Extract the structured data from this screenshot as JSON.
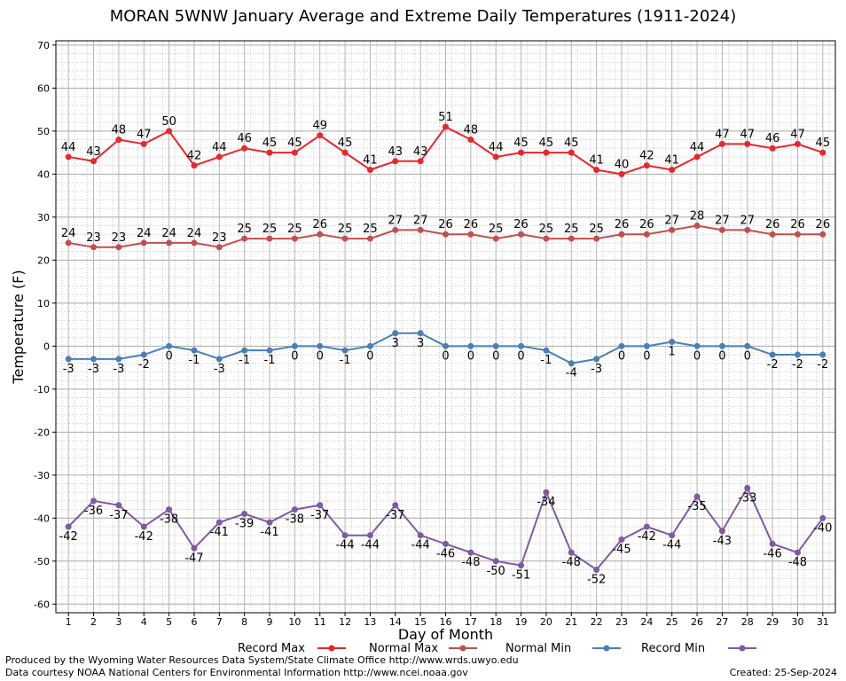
{
  "chart_data": {
    "type": "line",
    "title": "MORAN 5WNW January Average and Extreme Daily Temperatures (1911-2024)",
    "xlabel": "Day of Month",
    "ylabel": "Temperature (F)",
    "ylim": [
      -62,
      71
    ],
    "yticks": [
      -60,
      -50,
      -40,
      -30,
      -20,
      -10,
      0,
      10,
      20,
      30,
      40,
      50,
      60,
      70
    ],
    "xlim": [
      0.5,
      31.5
    ],
    "categories": [
      "1",
      "2",
      "3",
      "4",
      "5",
      "6",
      "7",
      "8",
      "9",
      "10",
      "11",
      "12",
      "13",
      "14",
      "15",
      "16",
      "17",
      "18",
      "19",
      "20",
      "21",
      "22",
      "23",
      "24",
      "25",
      "26",
      "27",
      "28",
      "29",
      "30",
      "31"
    ],
    "grid": true,
    "legend_position": "bottom",
    "series": [
      {
        "name": "Record Max",
        "color": "#e8262b",
        "label_position": "above",
        "values": [
          44,
          43,
          48,
          47,
          50,
          42,
          44,
          46,
          45,
          45,
          49,
          45,
          41,
          43,
          43,
          51,
          48,
          44,
          45,
          45,
          45,
          41,
          40,
          42,
          41,
          44,
          47,
          47,
          46,
          47,
          45
        ]
      },
      {
        "name": "Normal Max",
        "color": "#c0504d",
        "label_position": "above",
        "values": [
          24,
          23,
          23,
          24,
          24,
          24,
          23,
          25,
          25,
          25,
          26,
          25,
          25,
          27,
          27,
          26,
          26,
          25,
          26,
          25,
          25,
          25,
          26,
          26,
          27,
          28,
          27,
          27,
          26,
          26,
          26
        ]
      },
      {
        "name": "Normal Min",
        "color": "#4a7fb5",
        "label_position": "below",
        "values": [
          -3,
          -3,
          -3,
          -2,
          0,
          -1,
          -3,
          -1,
          -1,
          0,
          0,
          -1,
          0,
          3,
          3,
          0,
          0,
          0,
          0,
          -1,
          -4,
          -3,
          0,
          0,
          1,
          0,
          0,
          0,
          -2,
          -2,
          -2
        ]
      },
      {
        "name": "Record Min",
        "color": "#7f5aa2",
        "label_position": "below",
        "values": [
          -42,
          -36,
          -37,
          -42,
          -38,
          -47,
          -41,
          -39,
          -41,
          -38,
          -37,
          -44,
          -44,
          -37,
          -44,
          -46,
          -48,
          -50,
          -51,
          -34,
          -48,
          -52,
          -45,
          -42,
          -44,
          -35,
          -43,
          -33,
          -46,
          -48,
          -40
        ]
      }
    ]
  },
  "footer": {
    "produced_by": "Produced by the Wyoming Water Resources Data System/State Climate Office http://www.wrds.uwyo.edu",
    "courtesy": "Data courtesy NOAA National Centers for Environmental Information http://www.ncei.noaa.gov",
    "created": "Created: 25-Sep-2024"
  }
}
